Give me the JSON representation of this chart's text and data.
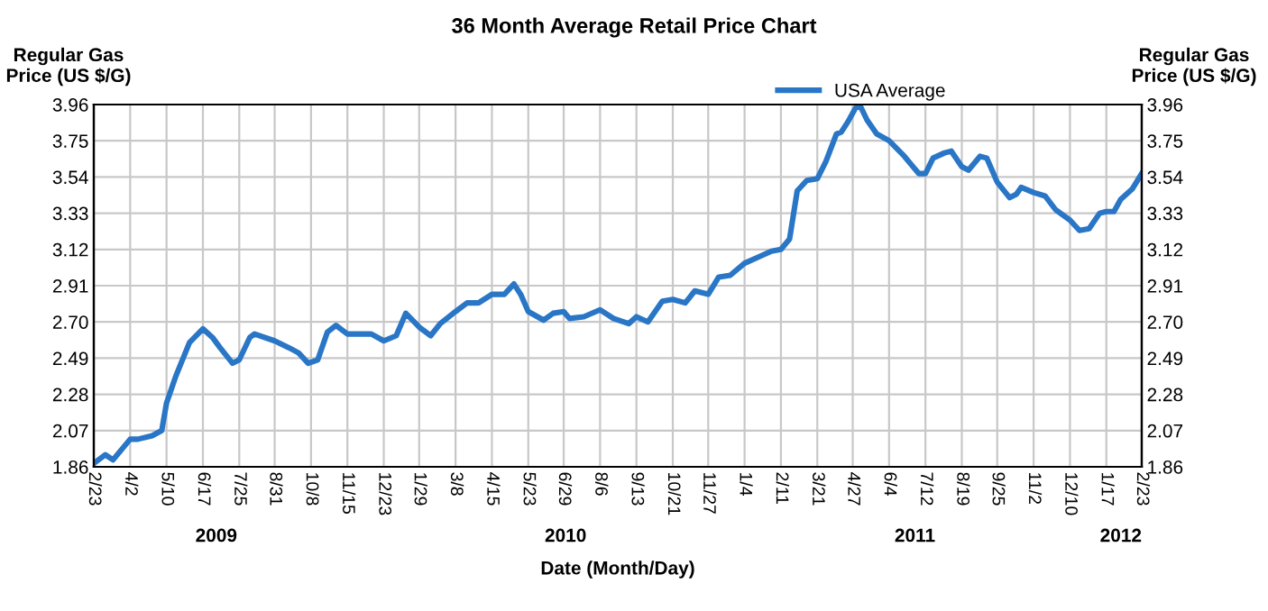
{
  "chart_data": {
    "type": "line",
    "title": "36 Month Average Retail Price Chart",
    "xlabel": "Date (Month/Day)",
    "ylabel": "Regular Gas\nPrice (US $/G)",
    "y2label": "Regular Gas\nPrice (US $/G)",
    "annotations": [
      "2009",
      "2010",
      "2011",
      "2012"
    ],
    "series": [
      {
        "name": "USA Average",
        "color": "#2a76c6",
        "x": [
          "2009-02-23",
          "2009-03-07",
          "2009-03-15",
          "2009-04-02",
          "2009-04-10",
          "2009-04-25",
          "2009-05-05",
          "2009-05-10",
          "2009-05-20",
          "2009-06-03",
          "2009-06-17",
          "2009-06-27",
          "2009-07-05",
          "2009-07-18",
          "2009-07-25",
          "2009-08-05",
          "2009-08-10",
          "2009-08-31",
          "2009-09-15",
          "2009-09-25",
          "2009-10-05",
          "2009-10-15",
          "2009-10-25",
          "2009-11-03",
          "2009-11-15",
          "2009-12-10",
          "2009-12-23",
          "2010-01-05",
          "2010-01-15",
          "2010-01-29",
          "2010-02-10",
          "2010-02-20",
          "2010-03-08",
          "2010-03-20",
          "2010-04-01",
          "2010-04-15",
          "2010-04-28",
          "2010-05-08",
          "2010-05-15",
          "2010-05-23",
          "2010-06-08",
          "2010-06-18",
          "2010-06-29",
          "2010-07-05",
          "2010-07-20",
          "2010-08-06",
          "2010-08-20",
          "2010-09-05",
          "2010-09-13",
          "2010-09-25",
          "2010-10-10",
          "2010-10-21",
          "2010-11-03",
          "2010-11-13",
          "2010-11-27",
          "2010-12-08",
          "2010-12-20",
          "2011-01-04",
          "2011-01-20",
          "2011-02-01",
          "2011-02-11",
          "2011-02-20",
          "2011-02-28",
          "2011-03-10",
          "2011-03-21",
          "2011-03-30",
          "2011-04-10",
          "2011-04-15",
          "2011-04-22",
          "2011-04-30",
          "2011-05-05",
          "2011-05-12",
          "2011-05-22",
          "2011-06-04",
          "2011-06-20",
          "2011-07-05",
          "2011-07-12",
          "2011-07-20",
          "2011-08-01",
          "2011-08-08",
          "2011-08-19",
          "2011-08-26",
          "2011-09-07",
          "2011-09-14",
          "2011-09-25",
          "2011-10-08",
          "2011-10-15",
          "2011-10-20",
          "2011-11-02",
          "2011-11-14",
          "2011-11-25",
          "2011-12-10",
          "2011-12-20",
          "2011-12-30",
          "2012-01-10",
          "2012-01-17",
          "2012-01-25",
          "2012-02-01",
          "2012-02-13",
          "2012-02-23"
        ],
        "values": [
          1.88,
          1.93,
          1.9,
          2.02,
          2.02,
          2.04,
          2.07,
          2.23,
          2.39,
          2.58,
          2.66,
          2.61,
          2.55,
          2.46,
          2.48,
          2.61,
          2.63,
          2.59,
          2.55,
          2.52,
          2.46,
          2.48,
          2.64,
          2.68,
          2.63,
          2.63,
          2.59,
          2.62,
          2.75,
          2.67,
          2.62,
          2.69,
          2.76,
          2.81,
          2.81,
          2.86,
          2.86,
          2.92,
          2.86,
          2.76,
          2.71,
          2.75,
          2.76,
          2.72,
          2.73,
          2.77,
          2.72,
          2.69,
          2.73,
          2.7,
          2.82,
          2.83,
          2.81,
          2.88,
          2.86,
          2.96,
          2.97,
          3.04,
          3.08,
          3.11,
          3.12,
          3.18,
          3.46,
          3.52,
          3.53,
          3.63,
          3.79,
          3.8,
          3.86,
          3.94,
          3.95,
          3.87,
          3.79,
          3.75,
          3.66,
          3.56,
          3.56,
          3.65,
          3.68,
          3.69,
          3.6,
          3.58,
          3.66,
          3.65,
          3.51,
          3.42,
          3.44,
          3.48,
          3.45,
          3.43,
          3.35,
          3.29,
          3.23,
          3.24,
          3.33,
          3.34,
          3.34,
          3.41,
          3.47,
          3.56
        ]
      }
    ],
    "xlim": [
      "2009-02-23",
      "2012-02-23"
    ],
    "xticks": [
      {
        "value": "2009-02-23",
        "label": "2/23"
      },
      {
        "value": "2009-04-02",
        "label": "4/2"
      },
      {
        "value": "2009-05-10",
        "label": "5/10"
      },
      {
        "value": "2009-06-17",
        "label": "6/17"
      },
      {
        "value": "2009-07-25",
        "label": "7/25"
      },
      {
        "value": "2009-08-31",
        "label": "8/31"
      },
      {
        "value": "2009-10-08",
        "label": "10/8"
      },
      {
        "value": "2009-11-15",
        "label": "11/15"
      },
      {
        "value": "2009-12-23",
        "label": "12/23"
      },
      {
        "value": "2010-01-29",
        "label": "1/29"
      },
      {
        "value": "2010-03-08",
        "label": "3/8"
      },
      {
        "value": "2010-04-15",
        "label": "4/15"
      },
      {
        "value": "2010-05-23",
        "label": "5/23"
      },
      {
        "value": "2010-06-29",
        "label": "6/29"
      },
      {
        "value": "2010-08-06",
        "label": "8/6"
      },
      {
        "value": "2010-09-13",
        "label": "9/13"
      },
      {
        "value": "2010-10-21",
        "label": "10/21"
      },
      {
        "value": "2010-11-27",
        "label": "11/27"
      },
      {
        "value": "2011-01-04",
        "label": "1/4"
      },
      {
        "value": "2011-02-11",
        "label": "2/11"
      },
      {
        "value": "2011-03-21",
        "label": "3/21"
      },
      {
        "value": "2011-04-27",
        "label": "4/27"
      },
      {
        "value": "2011-06-04",
        "label": "6/4"
      },
      {
        "value": "2011-07-12",
        "label": "7/12"
      },
      {
        "value": "2011-08-19",
        "label": "8/19"
      },
      {
        "value": "2011-09-25",
        "label": "9/25"
      },
      {
        "value": "2011-11-02",
        "label": "11/2"
      },
      {
        "value": "2011-12-10",
        "label": "12/10"
      },
      {
        "value": "2012-01-17",
        "label": "1/17"
      },
      {
        "value": "2012-02-23",
        "label": "2/23"
      }
    ],
    "ylim": [
      1.86,
      3.96
    ],
    "yticks": [
      1.86,
      2.07,
      2.28,
      2.49,
      {
        "value": 2.7,
        "label": "2.70"
      },
      2.91,
      3.12,
      3.33,
      3.54,
      3.75,
      3.96
    ],
    "y2lim": [
      1.86,
      3.96
    ],
    "y2ticks": [
      1.86,
      2.07,
      2.28,
      2.49,
      {
        "value": 2.7,
        "label": "2.70"
      },
      2.91,
      3.12,
      3.33,
      3.54,
      3.75,
      3.96
    ],
    "grid": true,
    "legend": "top right",
    "line_style": "solid",
    "marker": "none"
  }
}
